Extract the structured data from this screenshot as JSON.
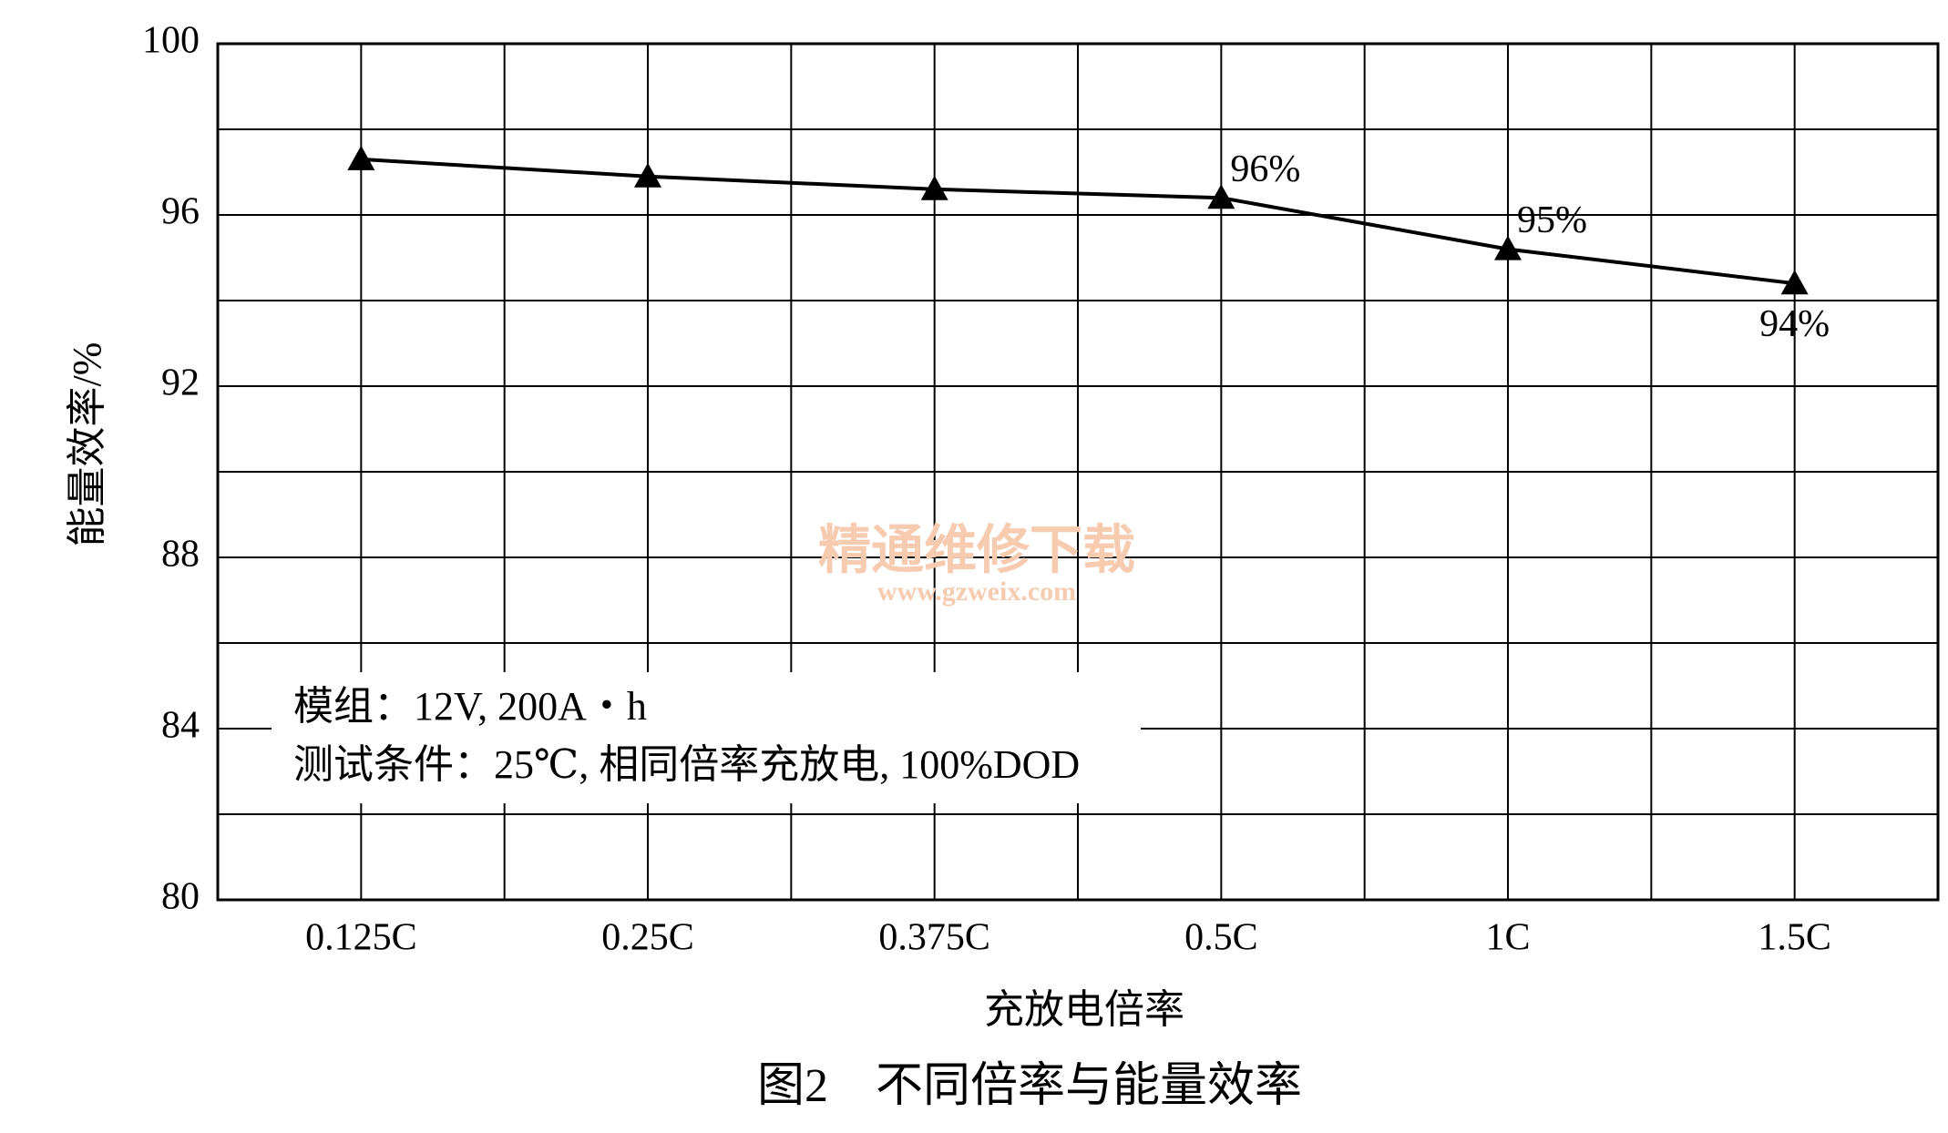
{
  "chart_data": {
    "type": "line",
    "title": "图2　不同倍率与能量效率",
    "x_label": "充放电倍率",
    "y_label": "能量效率/%",
    "categories": [
      "0.125C",
      "0.25C",
      "0.375C",
      "0.5C",
      "1C",
      "1.5C"
    ],
    "series": [
      {
        "name": "能量效率",
        "color": "#000000",
        "values": [
          97.3,
          96.9,
          96.6,
          96.4,
          95.2,
          94.4
        ],
        "value_labels": [
          null,
          null,
          null,
          "96%",
          "95%",
          "94%"
        ]
      }
    ],
    "ylim": [
      80,
      100
    ],
    "yticks": [
      80,
      84,
      88,
      92,
      96,
      100
    ],
    "minor_yticks": [
      82,
      86,
      90,
      94,
      98
    ],
    "grid": true,
    "annotations": [
      "模组：12V, 200A・h",
      "测试条件：25℃, 相同倍率充放电, 100%DOD"
    ],
    "watermark": [
      "精通维修下载",
      "www.gzweix.com"
    ]
  }
}
